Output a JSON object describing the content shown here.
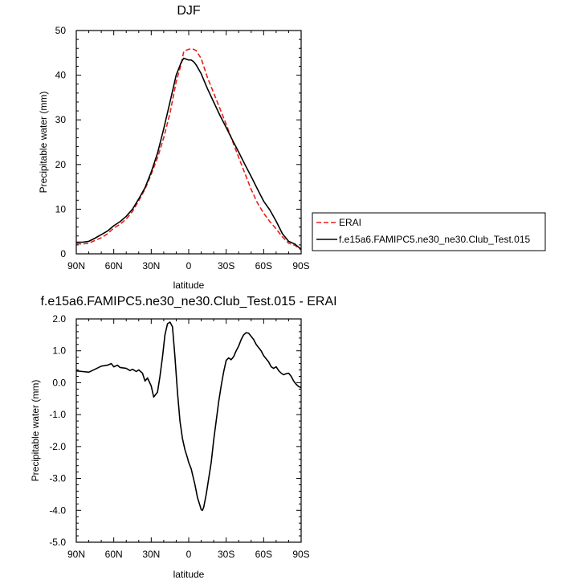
{
  "chart_data": [
    {
      "type": "line",
      "title": "DJF",
      "xlabel": "latitude",
      "ylabel": "Precipitable water (mm)",
      "x_ticklabels": [
        "90N",
        "60N",
        "30N",
        "0",
        "30S",
        "60S",
        "90S"
      ],
      "x_tickvalues": [
        90,
        60,
        30,
        0,
        -30,
        -60,
        -90
      ],
      "xlim": [
        90,
        -90
      ],
      "ylim": [
        0,
        50
      ],
      "y_ticklabels": [
        "0",
        "10",
        "20",
        "30",
        "40",
        "50"
      ],
      "y_tickvalues": [
        0,
        10,
        20,
        30,
        40,
        50
      ],
      "grid": false,
      "legend": "right",
      "series": [
        {
          "name": "ERAI",
          "color": "#e8201c",
          "dash": true,
          "x": [
            90,
            85,
            80,
            75,
            70,
            65,
            60,
            55,
            50,
            45,
            40,
            35,
            30,
            25,
            20,
            15,
            10,
            6,
            4,
            2,
            0,
            -2,
            -4,
            -6,
            -10,
            -15,
            -20,
            -25,
            -30,
            -35,
            -40,
            -45,
            -50,
            -55,
            -60,
            -65,
            -70,
            -75,
            -80,
            -85,
            -90
          ],
          "y": [
            2.3,
            2.2,
            2.4,
            3.0,
            3.6,
            4.5,
            5.8,
            6.6,
            7.8,
            9.5,
            11.9,
            14.5,
            17.8,
            21.5,
            26.0,
            31.5,
            38.5,
            42.5,
            45.3,
            45.6,
            45.8,
            45.9,
            45.8,
            45.5,
            43.7,
            39.5,
            36.0,
            32.5,
            29.0,
            25.3,
            21.6,
            18.0,
            14.4,
            11.4,
            9.1,
            7.2,
            5.6,
            3.8,
            2.4,
            1.9,
            0.9
          ]
        },
        {
          "name": "f.e15a6.FAMIPC5.ne30_ne30.Club_Test.015",
          "color": "#000000",
          "dash": false,
          "x": [
            90,
            85,
            80,
            75,
            70,
            65,
            60,
            55,
            50,
            45,
            40,
            35,
            30,
            25,
            20,
            15,
            10,
            6,
            4,
            2,
            0,
            -2,
            -4,
            -6,
            -10,
            -15,
            -20,
            -25,
            -30,
            -35,
            -40,
            -45,
            -50,
            -55,
            -60,
            -65,
            -70,
            -75,
            -80,
            -85,
            -90
          ],
          "y": [
            2.6,
            2.6,
            2.8,
            3.5,
            4.3,
            5.1,
            6.3,
            7.2,
            8.4,
            10.0,
            12.3,
            14.8,
            18.3,
            22.5,
            28.0,
            34.0,
            40.0,
            42.9,
            43.8,
            43.6,
            43.4,
            43.4,
            43.0,
            42.3,
            40.3,
            37.0,
            34.0,
            31.0,
            28.3,
            25.5,
            22.8,
            20.0,
            17.3,
            14.5,
            11.8,
            9.8,
            7.3,
            4.5,
            2.8,
            2.2,
            1.0
          ]
        }
      ]
    },
    {
      "type": "line",
      "title": "f.e15a6.FAMIPC5.ne30_ne30.Club_Test.015 - ERAI",
      "xlabel": "latitude",
      "ylabel": "Precipitable water (mm)",
      "x_ticklabels": [
        "90N",
        "60N",
        "30N",
        "0",
        "30S",
        "60S",
        "90S"
      ],
      "x_tickvalues": [
        90,
        60,
        30,
        0,
        -30,
        -60,
        -90
      ],
      "xlim": [
        90,
        -90
      ],
      "ylim": [
        -5,
        2
      ],
      "y_ticklabels": [
        "2.0",
        "1.0",
        "0.0",
        "-1.0",
        "-2.0",
        "-3.0",
        "-4.0",
        "-5.0"
      ],
      "y_tickvalues": [
        2,
        1,
        0,
        -1,
        -2,
        -3,
        -4,
        -5
      ],
      "grid": false,
      "series": [
        {
          "color": "#000000",
          "x": [
            90,
            85,
            80,
            75,
            70,
            65,
            62,
            60,
            57,
            55,
            50,
            47,
            45,
            42,
            40,
            37,
            35,
            33,
            30,
            28,
            25,
            23,
            21,
            19,
            17,
            15,
            13,
            11,
            9,
            7,
            5,
            3,
            1,
            0,
            -2,
            -5,
            -7,
            -9,
            -10,
            -11,
            -12,
            -14,
            -16,
            -18,
            -20,
            -22,
            -24,
            -26,
            -28,
            -30,
            -32,
            -34,
            -36,
            -38,
            -40,
            -42,
            -44,
            -46,
            -48,
            -50,
            -52,
            -54,
            -56,
            -58,
            -60,
            -62,
            -64,
            -66,
            -68,
            -70,
            -72,
            -74,
            -76,
            -78,
            -80,
            -82,
            -84,
            -86,
            -88,
            -90
          ],
          "y": [
            0.37,
            0.35,
            0.33,
            0.42,
            0.52,
            0.55,
            0.6,
            0.5,
            0.55,
            0.48,
            0.45,
            0.38,
            0.42,
            0.35,
            0.4,
            0.3,
            0.05,
            0.15,
            -0.1,
            -0.45,
            -0.3,
            0.2,
            0.8,
            1.5,
            1.85,
            1.9,
            1.75,
            0.8,
            -0.3,
            -1.2,
            -1.75,
            -2.1,
            -2.35,
            -2.5,
            -2.7,
            -3.2,
            -3.6,
            -3.85,
            -3.98,
            -4.0,
            -3.9,
            -3.5,
            -3.0,
            -2.5,
            -1.8,
            -1.2,
            -0.6,
            -0.1,
            0.35,
            0.7,
            0.78,
            0.72,
            0.82,
            1.0,
            1.15,
            1.35,
            1.5,
            1.57,
            1.55,
            1.45,
            1.35,
            1.2,
            1.1,
            1.0,
            0.85,
            0.75,
            0.65,
            0.5,
            0.45,
            0.5,
            0.38,
            0.3,
            0.25,
            0.28,
            0.3,
            0.2,
            0.05,
            -0.05,
            -0.12,
            -0.15
          ]
        }
      ]
    }
  ]
}
